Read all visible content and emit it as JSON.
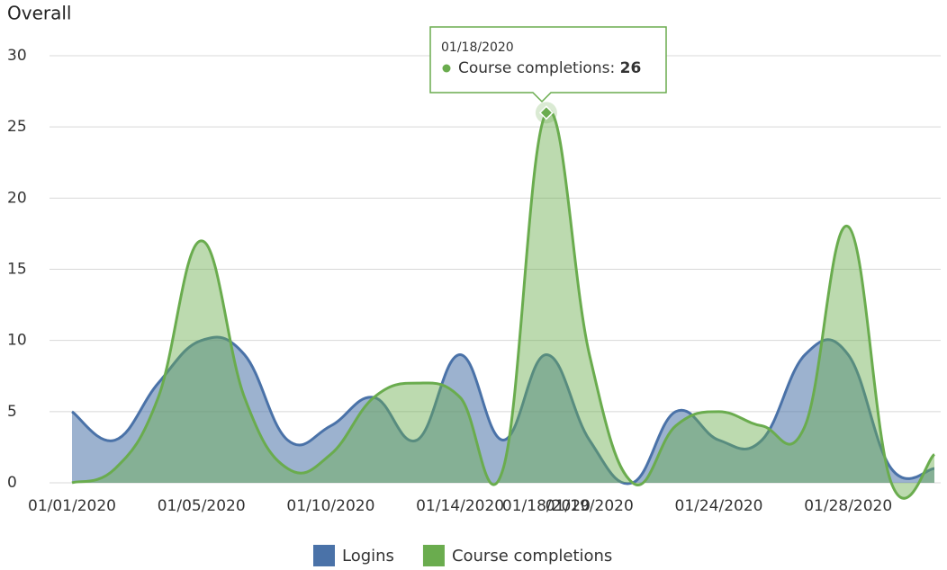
{
  "chart_data": {
    "type": "areaspline",
    "title": "Overall",
    "categories": [
      "01/01/2020",
      null,
      null,
      "01/05/2020",
      null,
      null,
      "01/10/2020",
      null,
      null,
      "01/14/2020",
      null,
      "01/18/2020",
      "01/19/2020",
      null,
      null,
      "01/24/2020",
      null,
      null,
      "01/28/2020",
      null,
      null
    ],
    "series": [
      {
        "name": "Logins",
        "color": "#4a72a8",
        "values": [
          5,
          3,
          7,
          10,
          9,
          3,
          4,
          6,
          3,
          9,
          3,
          9,
          3,
          0,
          5,
          3,
          3,
          9,
          9,
          1,
          1
        ]
      },
      {
        "name": "Course completions",
        "color": "#6aac4e",
        "values": [
          0,
          1,
          6,
          17,
          6,
          1,
          2,
          6,
          7,
          6,
          1,
          26,
          9,
          0,
          4,
          5,
          4,
          4,
          18,
          0,
          2
        ]
      }
    ],
    "ylim": [
      0,
      30
    ],
    "yticks": [
      0,
      5,
      10,
      15,
      20,
      25,
      30
    ],
    "grid": true,
    "legend": "bottom"
  }
}
